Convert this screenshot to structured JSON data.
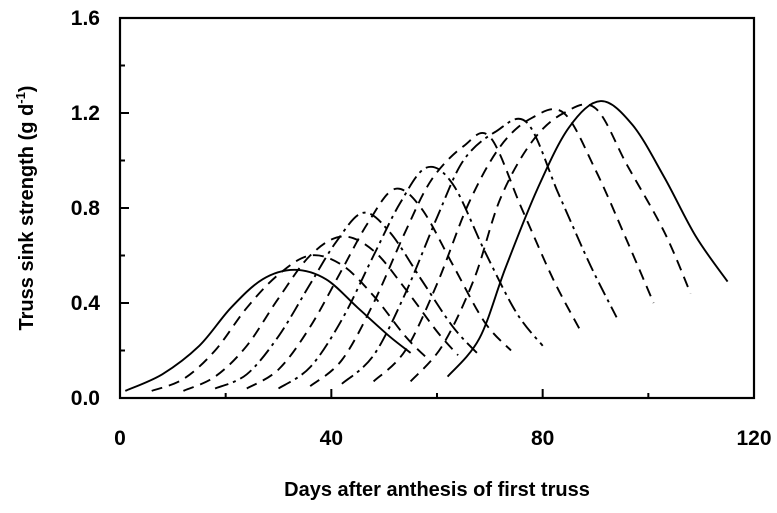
{
  "chart_data": {
    "type": "line",
    "title": "",
    "xlabel": "Days after anthesis of first truss",
    "ylabel": "Truss sink strength (g d",
    "ylabel_superscript": "-1",
    "ylabel_close": ")",
    "xlim": [
      0,
      120
    ],
    "ylim": [
      0,
      1.6
    ],
    "xticks": [
      0,
      40,
      80,
      120
    ],
    "yticks": [
      0.0,
      0.4,
      0.8,
      1.2,
      1.6
    ],
    "xtick_labels": [
      "0",
      "40",
      "80",
      "120"
    ],
    "ytick_labels": [
      "0.0",
      "0.4",
      "0.8",
      "1.2",
      "1.6"
    ],
    "grid": false,
    "legend": "none",
    "series": [
      {
        "style": "solid",
        "x": [
          1,
          8,
          15,
          21,
          27,
          33,
          39,
          45,
          51,
          55
        ],
        "y": [
          0.03,
          0.1,
          0.22,
          0.38,
          0.5,
          0.54,
          0.5,
          0.38,
          0.26,
          0.19
        ]
      },
      {
        "style": "dashed",
        "x": [
          6,
          12,
          18,
          24,
          30,
          36,
          42,
          48,
          54,
          58
        ],
        "y": [
          0.03,
          0.08,
          0.2,
          0.38,
          0.52,
          0.6,
          0.56,
          0.43,
          0.26,
          0.17
        ]
      },
      {
        "style": "dashed",
        "x": [
          12,
          18,
          24,
          30,
          36,
          42,
          48,
          54,
          60,
          64
        ],
        "y": [
          0.03,
          0.09,
          0.22,
          0.42,
          0.6,
          0.68,
          0.62,
          0.46,
          0.28,
          0.18
        ]
      },
      {
        "style": "dashdot",
        "x": [
          18,
          24,
          30,
          36,
          41,
          46,
          51,
          57,
          63,
          68
        ],
        "y": [
          0.04,
          0.1,
          0.26,
          0.48,
          0.66,
          0.78,
          0.7,
          0.5,
          0.3,
          0.18
        ]
      },
      {
        "style": "dashed",
        "x": [
          24,
          30,
          36,
          42,
          47,
          52,
          57,
          63,
          69,
          74
        ],
        "y": [
          0.04,
          0.12,
          0.3,
          0.54,
          0.74,
          0.88,
          0.8,
          0.56,
          0.32,
          0.2
        ]
      },
      {
        "style": "dashdot",
        "x": [
          30,
          36,
          42,
          48,
          53,
          58,
          63,
          69,
          75,
          80
        ],
        "y": [
          0.04,
          0.13,
          0.33,
          0.6,
          0.82,
          0.97,
          0.9,
          0.62,
          0.36,
          0.22
        ]
      },
      {
        "style": "dashed",
        "x": [
          36,
          42,
          48,
          54,
          59,
          65,
          70,
          76,
          82,
          87
        ],
        "y": [
          0.05,
          0.16,
          0.4,
          0.7,
          0.92,
          1.06,
          1.1,
          0.8,
          0.5,
          0.29
        ]
      },
      {
        "style": "dashdot",
        "x": [
          42,
          48,
          54,
          60,
          65,
          71,
          77,
          83,
          89,
          94
        ],
        "y": [
          0.06,
          0.18,
          0.44,
          0.76,
          1.0,
          1.12,
          1.16,
          0.86,
          0.56,
          0.34
        ]
      },
      {
        "style": "dashed",
        "x": [
          48,
          54,
          60,
          66,
          72,
          78,
          84,
          90,
          96,
          101
        ],
        "y": [
          0.07,
          0.2,
          0.48,
          0.82,
          1.06,
          1.18,
          1.2,
          0.96,
          0.66,
          0.4
        ]
      },
      {
        "style": "dashed",
        "x": [
          55,
          61,
          67,
          72,
          78,
          84,
          90,
          96,
          103,
          108
        ],
        "y": [
          0.07,
          0.22,
          0.5,
          0.84,
          1.08,
          1.2,
          1.22,
          0.98,
          0.7,
          0.44
        ]
      },
      {
        "style": "solid",
        "x": [
          62,
          68,
          73,
          79,
          85,
          91,
          97,
          103,
          109,
          115
        ],
        "y": [
          0.09,
          0.25,
          0.55,
          0.88,
          1.14,
          1.25,
          1.15,
          0.93,
          0.68,
          0.49
        ]
      }
    ]
  }
}
